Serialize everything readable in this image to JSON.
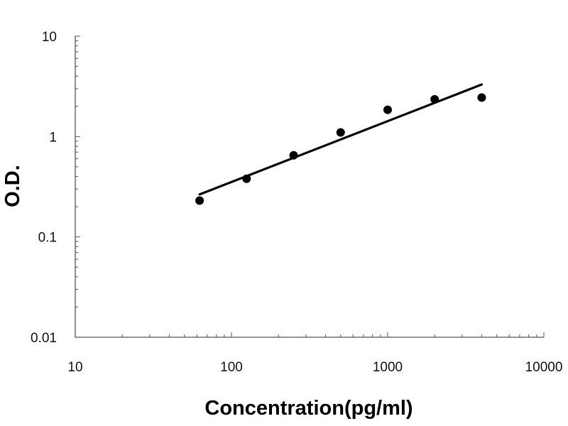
{
  "chart_data": {
    "type": "scatter",
    "title": "",
    "xlabel": "Concentration(pg/ml)",
    "ylabel": "O.D.",
    "x_scale": "log",
    "y_scale": "log",
    "xlim": [
      10,
      10000
    ],
    "ylim": [
      0.01,
      10
    ],
    "x_ticks": [
      "10",
      "100",
      "1000",
      "10000"
    ],
    "y_ticks": [
      "0.01",
      "0.1",
      "1",
      "10"
    ],
    "grid": false,
    "legend": "none",
    "marker_color": "#000000",
    "line_color": "#000000",
    "series": [
      {
        "x": [
          62.5,
          125,
          250,
          500,
          1000,
          2000,
          4000
        ],
        "y": [
          0.23,
          0.38,
          0.65,
          1.1,
          1.85,
          2.35,
          2.45
        ]
      }
    ],
    "fit_line": {
      "x": [
        62.5,
        4000
      ],
      "y": [
        0.265,
        3.3
      ]
    }
  }
}
